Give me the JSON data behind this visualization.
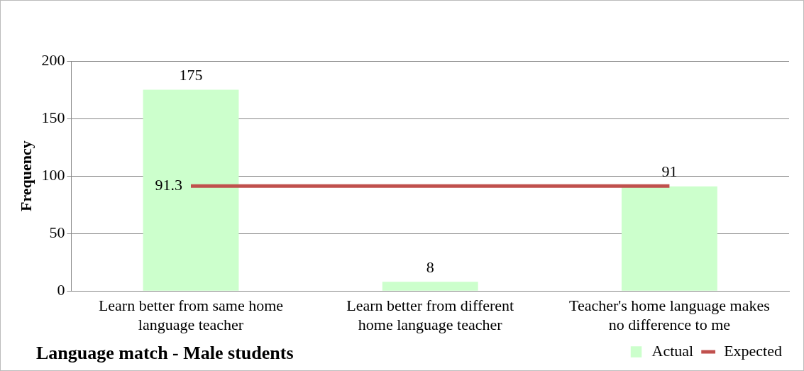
{
  "chart_data": {
    "type": "bar",
    "title": "Language match - Male students",
    "ylabel": "Frequency",
    "categories": [
      "Learn better from same home language teacher",
      "Learn better from different home language teacher",
      "Teacher's home language makes no difference to me"
    ],
    "series": [
      {
        "name": "Actual",
        "color": "#ccffcc",
        "values": [
          175,
          8,
          91
        ],
        "value_labels": [
          "175",
          "8",
          "91"
        ]
      },
      {
        "name": "Expected",
        "type": "line",
        "color": "#c0504d",
        "values": [
          91.3,
          91.3,
          91.3
        ],
        "value_labels": [
          "91.3",
          null,
          null
        ]
      }
    ],
    "ylim": [
      0,
      200
    ],
    "yticks": [
      0,
      50,
      100,
      150,
      200
    ],
    "grid": "y",
    "legend": "bottom right",
    "marker": "none"
  }
}
